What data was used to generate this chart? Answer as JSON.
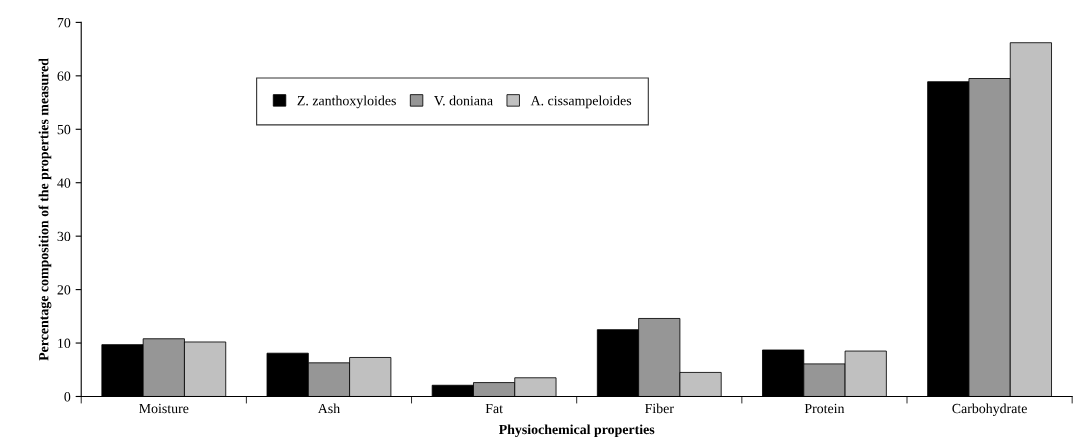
{
  "chart_data": {
    "type": "bar",
    "xlabel": "Physiochemical properties",
    "ylabel": "Percentage composition of the properties measured",
    "categories": [
      "Moisture",
      "Ash",
      "Fat",
      "Fiber",
      "Protein",
      "Carbohydrate"
    ],
    "series": [
      {
        "name": "Z. zanthoxyloides",
        "color": "#000000",
        "values": [
          9.7,
          8.1,
          2.1,
          12.5,
          8.7,
          58.9
        ]
      },
      {
        "name": "V. doniana",
        "color": "#969696",
        "values": [
          10.8,
          6.3,
          2.6,
          14.6,
          6.1,
          59.5
        ]
      },
      {
        "name": "A. cissampeloides",
        "color": "#c0c0c0",
        "values": [
          10.2,
          7.3,
          3.5,
          4.5,
          8.5,
          66.2
        ]
      }
    ],
    "ylim": [
      0,
      70
    ],
    "yticks": [
      0,
      10,
      20,
      30,
      40,
      50,
      60,
      70
    ],
    "grid": false,
    "legend": "top left"
  }
}
